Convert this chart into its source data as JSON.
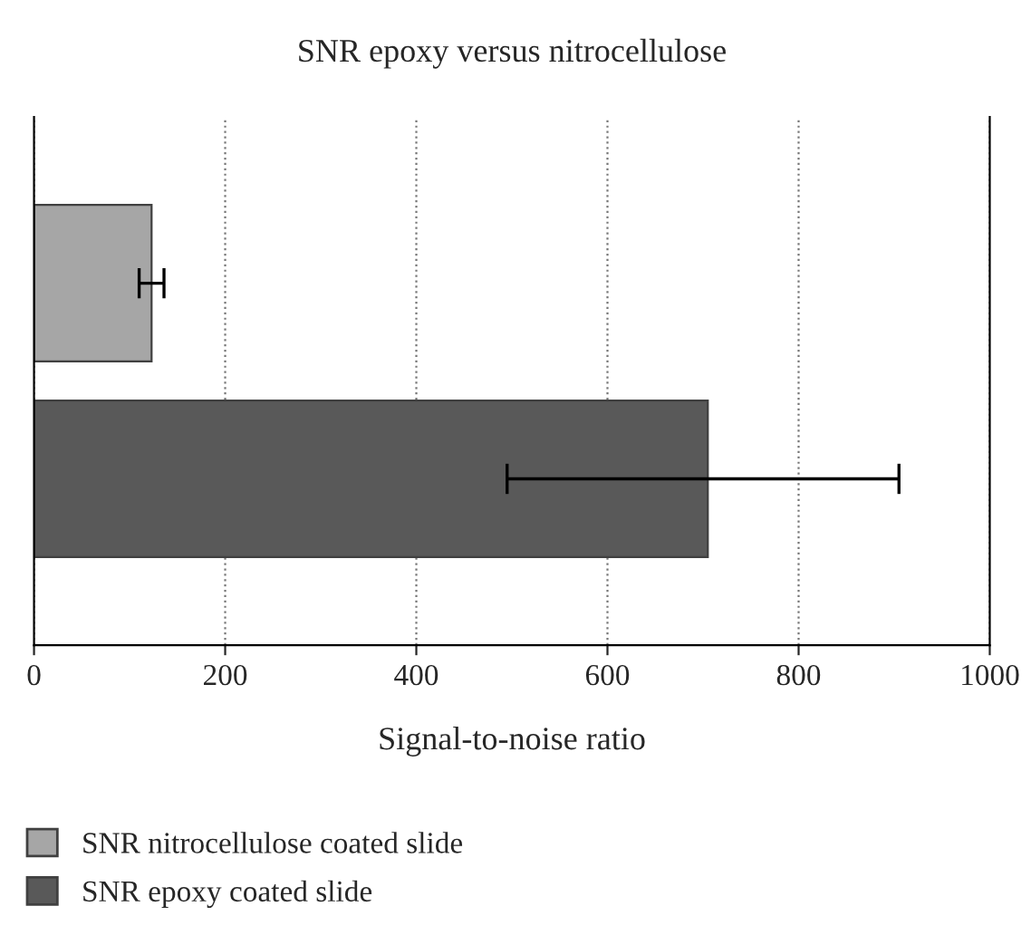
{
  "chart_data": {
    "type": "bar",
    "orientation": "horizontal",
    "title": "SNR epoxy versus nitrocellulose",
    "xlabel": "Signal-to-noise ratio",
    "categories": [
      null,
      null
    ],
    "series": [
      {
        "name": "SNR nitrocellulose coated slide",
        "color": "#a6a6a6",
        "values": [
          123,
          null
        ],
        "errors": [
          13,
          null
        ]
      },
      {
        "name": "SNR epoxy coated slide",
        "color": "#595959",
        "values": [
          null,
          705
        ],
        "errors": [
          null,
          [
            495,
            905
          ]
        ]
      }
    ],
    "xlim": [
      0,
      1000
    ],
    "xticks": [
      0,
      200,
      400,
      600,
      800,
      1000
    ],
    "grid": "x",
    "legend": "bottom",
    "tick_labels": "x"
  }
}
